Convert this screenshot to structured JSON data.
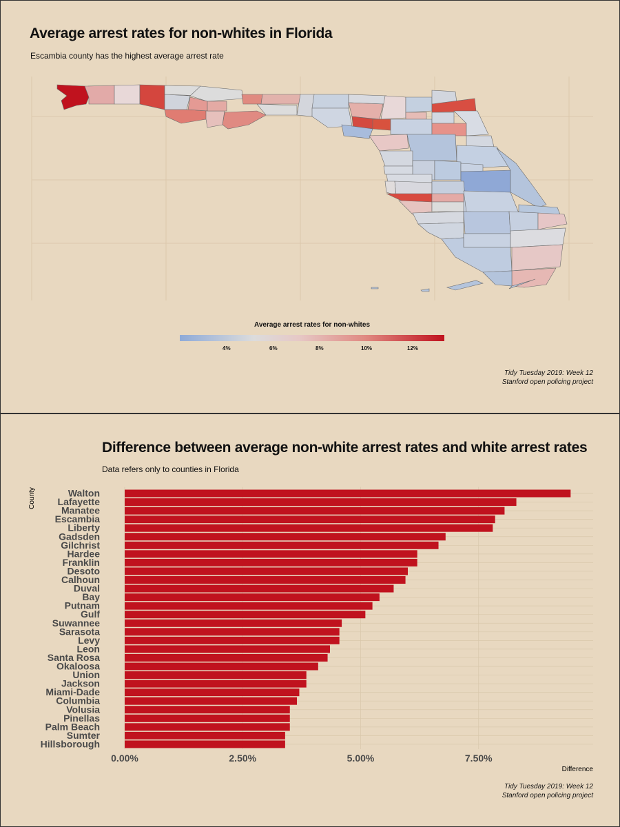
{
  "map_panel": {
    "title": "Average arrest rates for non-whites in Florida",
    "subtitle": "Escambia county has the highest average arrest rate",
    "legend_title": "Average arrest rates for non-whites",
    "legend_ticks": [
      "4%",
      "6%",
      "8%",
      "10%",
      "12%"
    ],
    "caption_line1": "Tidy Tuesday 2019: Week 12",
    "caption_line2": "Stanford open policing project"
  },
  "bar_panel": {
    "title": "Difference between average non-white arrest rates and white arrest rates",
    "subtitle": "Data refers only to counties in Florida",
    "caption_line1": "Tidy Tuesday 2019: Week 12",
    "caption_line2": "Stanford open policing project"
  },
  "colors": {
    "background": "#e8d8c0",
    "bar": "#c0121e",
    "scale_low": "#8eaad8",
    "scale_mid": "#dcdcdc",
    "scale_high": "#c0121e"
  },
  "chart_data": [
    {
      "type": "map",
      "title": "Average arrest rates for non-whites in Florida",
      "subtitle": "Escambia county has the highest average arrest rate",
      "legend": {
        "title": "Average arrest rates for non-whites",
        "ticks": [
          4,
          6,
          8,
          10,
          12
        ],
        "tick_labels": [
          "4%",
          "6%",
          "8%",
          "10%",
          "12%"
        ],
        "range": [
          2,
          13.5
        ],
        "placement": "bottom"
      },
      "highlighted": "Escambia"
    },
    {
      "type": "bar",
      "orientation": "horizontal",
      "title": "Difference between average non-white arrest rates and white arrest rates",
      "subtitle": "Data refers only to counties in Florida",
      "xlabel": "Difference",
      "ylabel": "County",
      "xlim": [
        0,
        9.5
      ],
      "x_ticks": [
        0,
        2.5,
        5,
        7.5
      ],
      "x_tick_labels": [
        "0.00%",
        "2.50%",
        "5.00%",
        "7.50%"
      ],
      "categories": [
        "Walton",
        "Lafayette",
        "Manatee",
        "Escambia",
        "Liberty",
        "Gadsden",
        "Gilchrist",
        "Hardee",
        "Franklin",
        "Desoto",
        "Calhoun",
        "Duval",
        "Bay",
        "Putnam",
        "Gulf",
        "Suwannee",
        "Sarasota",
        "Levy",
        "Leon",
        "Santa Rosa",
        "Okaloosa",
        "Union",
        "Jackson",
        "Miami-Dade",
        "Columbia",
        "Volusia",
        "Pinellas",
        "Palm Beach",
        "Sumter",
        "Hillsborough"
      ],
      "values": [
        9.45,
        8.3,
        8.05,
        7.85,
        7.8,
        6.8,
        6.65,
        6.2,
        6.2,
        6.0,
        5.95,
        5.7,
        5.4,
        5.25,
        5.1,
        4.6,
        4.55,
        4.55,
        4.35,
        4.3,
        4.1,
        3.85,
        3.85,
        3.7,
        3.65,
        3.5,
        3.5,
        3.5,
        3.4,
        3.4
      ],
      "grid": true
    }
  ]
}
